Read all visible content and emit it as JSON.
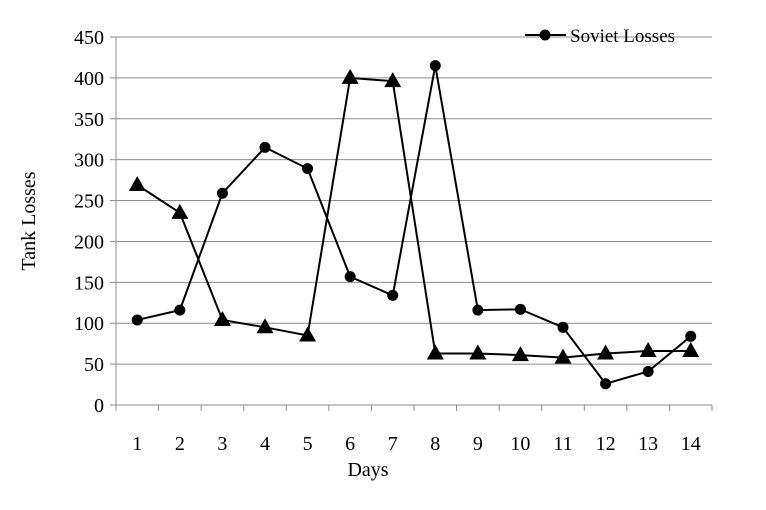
{
  "chart_data": {
    "type": "line",
    "title": "",
    "xlabel": "Days",
    "ylabel": "Tank Losses",
    "categories": [
      "1",
      "2",
      "3",
      "4",
      "5",
      "6",
      "7",
      "8",
      "9",
      "10",
      "11",
      "12",
      "13",
      "14"
    ],
    "ylim": [
      0,
      450
    ],
    "yticks": [
      "0",
      "50",
      "100",
      "150",
      "200",
      "250",
      "300",
      "350",
      "400",
      "450"
    ],
    "grid": true,
    "legend": "top-right",
    "series": [
      {
        "name": "Soviet Losses",
        "marker": "circle",
        "color": "#000000",
        "values": [
          104,
          116,
          259,
          315,
          289,
          157,
          134,
          415,
          116,
          117,
          95,
          26,
          41,
          84
        ]
      },
      {
        "name": "",
        "marker": "triangle",
        "color": "#000000",
        "values": [
          269,
          235,
          104,
          95,
          85,
          400,
          396,
          63,
          63,
          61,
          58,
          63,
          66,
          66
        ]
      }
    ]
  }
}
